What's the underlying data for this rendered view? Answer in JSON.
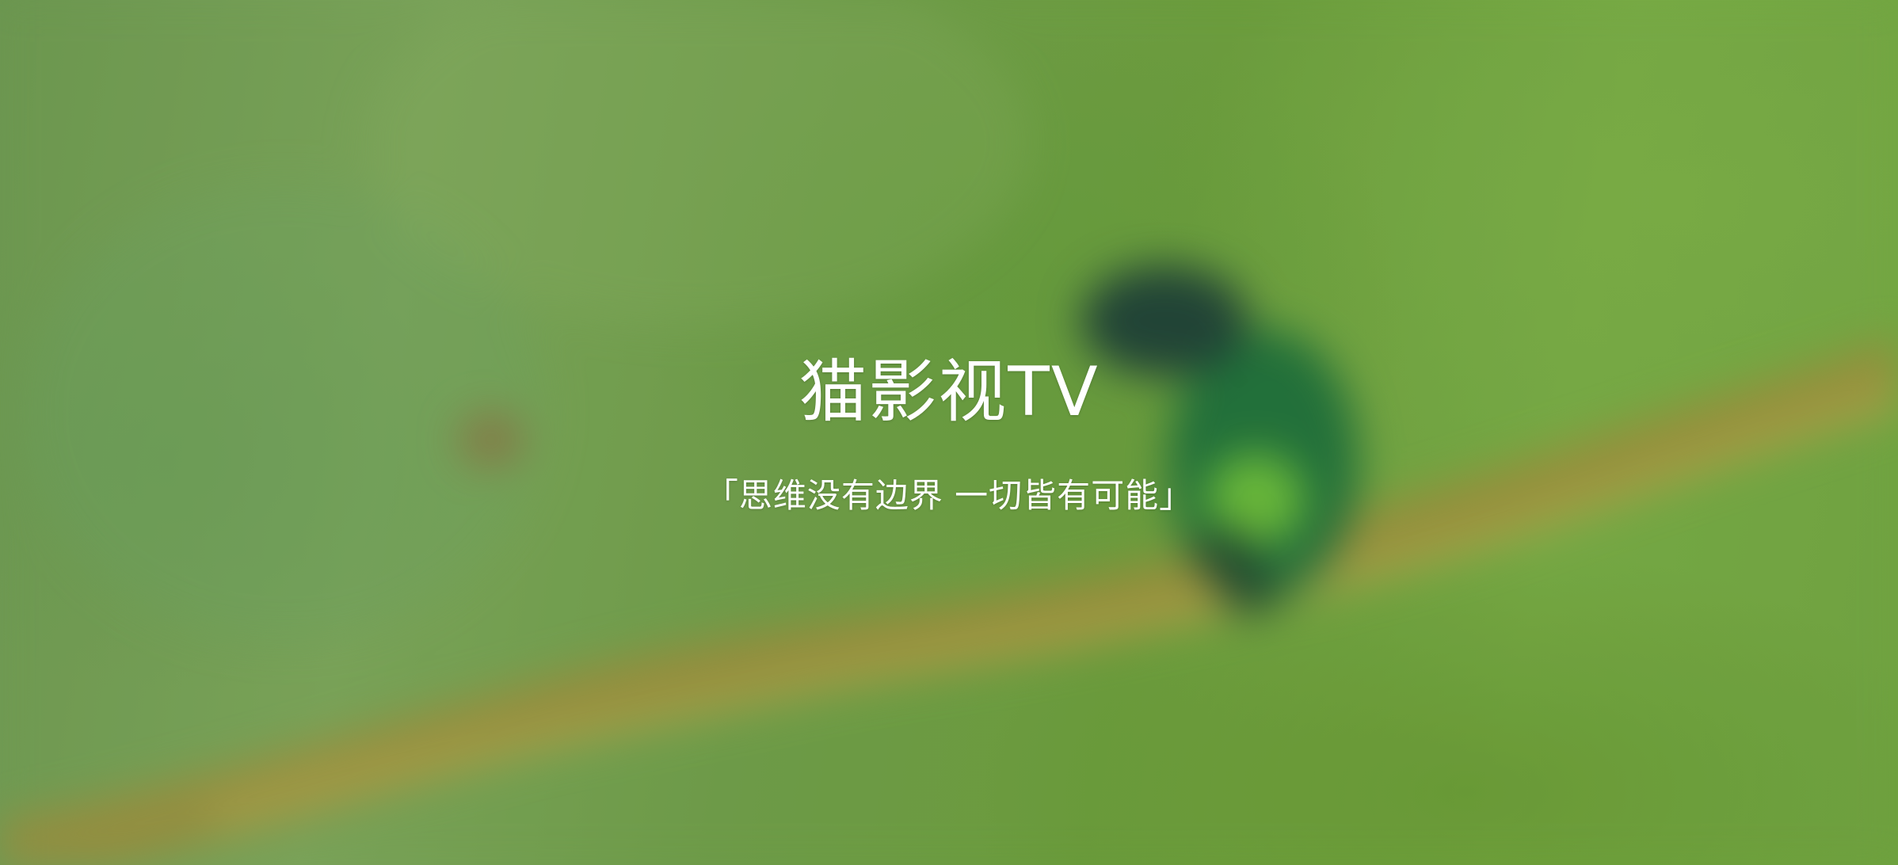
{
  "splash": {
    "title": "猫影视TV",
    "slogan": "「思维没有边界 一切皆有可能」"
  },
  "background": {
    "description_icon": "blurred-bird-on-branch-image",
    "colors": {
      "base_green": "#6f9a47",
      "light_green": "#7aa35a",
      "bird_dark": "#1f3f37",
      "bird_green": "#1c6d3b",
      "bird_chest": "#74c33a",
      "branch": "#9b8a3a"
    }
  }
}
